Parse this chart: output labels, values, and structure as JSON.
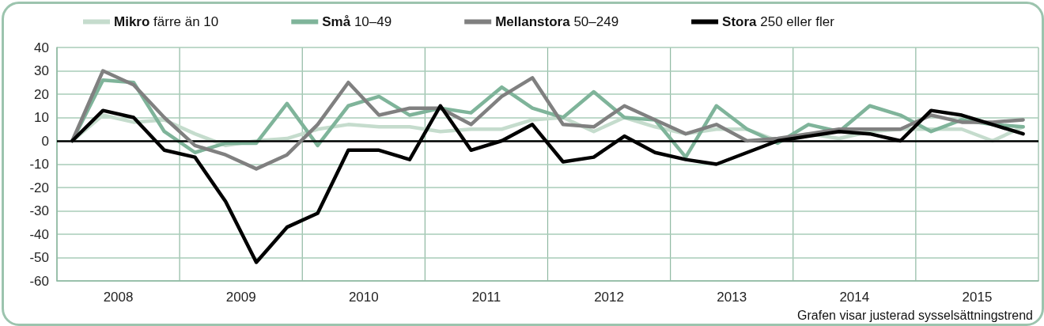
{
  "chart_data": {
    "type": "line",
    "x": [
      2008.125,
      2008.375,
      2008.625,
      2008.875,
      2009.125,
      2009.375,
      2009.625,
      2009.875,
      2010.125,
      2010.375,
      2010.625,
      2010.875,
      2011.125,
      2011.375,
      2011.625,
      2011.875,
      2012.125,
      2012.375,
      2012.625,
      2012.875,
      2013.125,
      2013.375,
      2013.625,
      2013.875,
      2014.125,
      2014.375,
      2014.625,
      2014.875,
      2015.125,
      2015.375,
      2015.625,
      2015.875
    ],
    "series": [
      {
        "name": "Mikro färre än 10",
        "color": "#c5dccd",
        "values": [
          0,
          11,
          8,
          9,
          3,
          -2,
          0,
          1,
          5,
          7,
          6,
          6,
          4,
          5,
          5,
          9,
          10,
          4,
          10,
          6,
          3,
          5,
          5,
          0,
          3,
          1,
          4,
          5,
          5,
          5,
          0,
          6
        ]
      },
      {
        "name": "Små 10–49",
        "color": "#7fb49a",
        "values": [
          0,
          26,
          25,
          4,
          -5,
          -1,
          -1,
          16,
          -2,
          15,
          19,
          11,
          14,
          12,
          23,
          14,
          10,
          21,
          10,
          9,
          -7,
          15,
          5,
          -1,
          7,
          4,
          15,
          11,
          4,
          9,
          7,
          6
        ]
      },
      {
        "name": "Mellanstora 50–249",
        "color": "#808080",
        "values": [
          0,
          30,
          24,
          10,
          -2,
          -6,
          -12,
          -6,
          7,
          25,
          11,
          14,
          14,
          7,
          19,
          27,
          7,
          6,
          15,
          9,
          3,
          7,
          0,
          1,
          3,
          5,
          5,
          5,
          11,
          8,
          8,
          9
        ]
      },
      {
        "name": "Stora 250 eller fler",
        "color": "#000000",
        "values": [
          0,
          13,
          10,
          -4,
          -7,
          -26,
          -52,
          -37,
          -31,
          -4,
          -4,
          -8,
          15,
          -4,
          0,
          7,
          -9,
          -7,
          2,
          -5,
          -8,
          -10,
          -5,
          0,
          2,
          4,
          3,
          0,
          13,
          11,
          7,
          3
        ]
      }
    ],
    "xlim": [
      2008,
      2016
    ],
    "xticks": [
      {
        "value": 2008,
        "label": null
      },
      {
        "value": 2008.5,
        "label": "2008"
      },
      {
        "value": 2009,
        "label": null
      },
      {
        "value": 2009.5,
        "label": "2009"
      },
      {
        "value": 2010,
        "label": null
      },
      {
        "value": 2010.5,
        "label": "2010"
      },
      {
        "value": 2011,
        "label": null
      },
      {
        "value": 2011.5,
        "label": "2011"
      },
      {
        "value": 2012,
        "label": null
      },
      {
        "value": 2012.5,
        "label": "2012"
      },
      {
        "value": 2013,
        "label": null
      },
      {
        "value": 2013.5,
        "label": "2013"
      },
      {
        "value": 2014,
        "label": null
      },
      {
        "value": 2014.5,
        "label": "2014"
      },
      {
        "value": 2015,
        "label": null
      },
      {
        "value": 2015.5,
        "label": "2015"
      },
      {
        "value": 2016,
        "label": null
      }
    ],
    "ylim": [
      -60,
      40
    ],
    "yticks": [
      -60,
      -50,
      -40,
      -30,
      -20,
      -10,
      0,
      10,
      20,
      30,
      40
    ],
    "ref_lines": [
      {
        "axis": "y",
        "value": 0,
        "color": "#000000"
      }
    ],
    "annotations": [
      "Grafen visar justerad sysselsättningstrend"
    ],
    "grid": true,
    "legend": "top",
    "marker": "none",
    "line_style": "solid"
  }
}
